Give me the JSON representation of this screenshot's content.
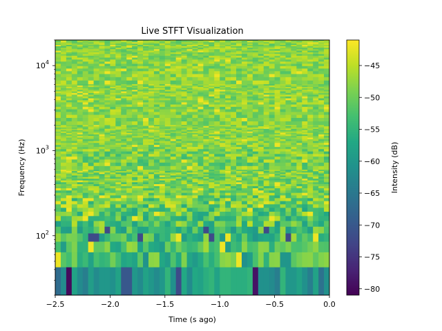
{
  "chart_data": {
    "type": "heatmap",
    "title": "Live STFT Visualization",
    "xlabel": "Time (s ago)",
    "ylabel": "Frequency (Hz)",
    "colorbar_label": "Intensity (dB)",
    "xlim": [
      -2.5,
      0.0
    ],
    "ylim": [
      20,
      20000
    ],
    "yscale": "log",
    "clim": [
      -81,
      -41
    ],
    "colormap": "viridis",
    "x_ticks": [
      "−2.5",
      "−2.0",
      "−1.5",
      "−1.0",
      "−0.5",
      "0.0"
    ],
    "x_tick_values": [
      -2.5,
      -2.0,
      -1.5,
      -1.0,
      -0.5,
      0.0
    ],
    "y_tick_values": [
      100,
      1000,
      10000
    ],
    "y_tick_base": "10",
    "y_tick_exps": [
      "2",
      "3",
      "4"
    ],
    "colorbar_ticks": [
      "−45",
      "−50",
      "−55",
      "−60",
      "−65",
      "−70",
      "−75",
      "−80"
    ],
    "colorbar_tick_values": [
      -45,
      -50,
      -55,
      -60,
      -65,
      -70,
      -75,
      -80
    ],
    "time_frames": 50,
    "freq_bin_width_hz": 21.5,
    "low_band_db": [
      -67,
      -62,
      -80,
      -58,
      -62,
      -64,
      -59,
      -62,
      -60,
      -60,
      -61,
      -58,
      -70,
      -70,
      -60,
      -62,
      -58,
      -60,
      -62,
      -60,
      -55,
      -61,
      -72,
      -57,
      -62,
      -57,
      -58,
      -56,
      -55,
      -58,
      -55,
      -55,
      -56,
      -56,
      -56,
      -55,
      -79,
      -61,
      -61,
      -62,
      -64,
      -55,
      -60,
      -60,
      -58,
      -61,
      -64,
      -58,
      -66,
      -61
    ],
    "low_band_hz": [
      20,
      43
    ]
  }
}
